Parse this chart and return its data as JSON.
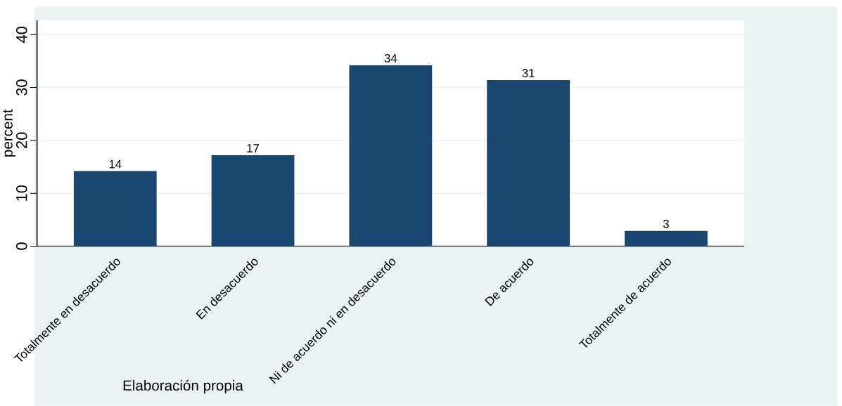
{
  "chart_data": {
    "type": "bar",
    "ylabel": "percent",
    "categories": [
      "Totalmente en desacuerdo",
      "En desacuerdo",
      "Ni de acuerdo ni en desacuerdo",
      "De acuerdo",
      "Totalmente de acuerdo"
    ],
    "values": [
      14.2,
      17.2,
      34.2,
      31.4,
      2.9
    ],
    "value_labels": [
      "14",
      "17",
      "34",
      "31",
      "3"
    ],
    "color": "#1a476f",
    "ylim": [
      0,
      42.7
    ],
    "yticks": [
      0,
      10,
      20,
      30,
      40
    ],
    "grid": "y",
    "annotations": [
      "Elaboración propia"
    ]
  }
}
